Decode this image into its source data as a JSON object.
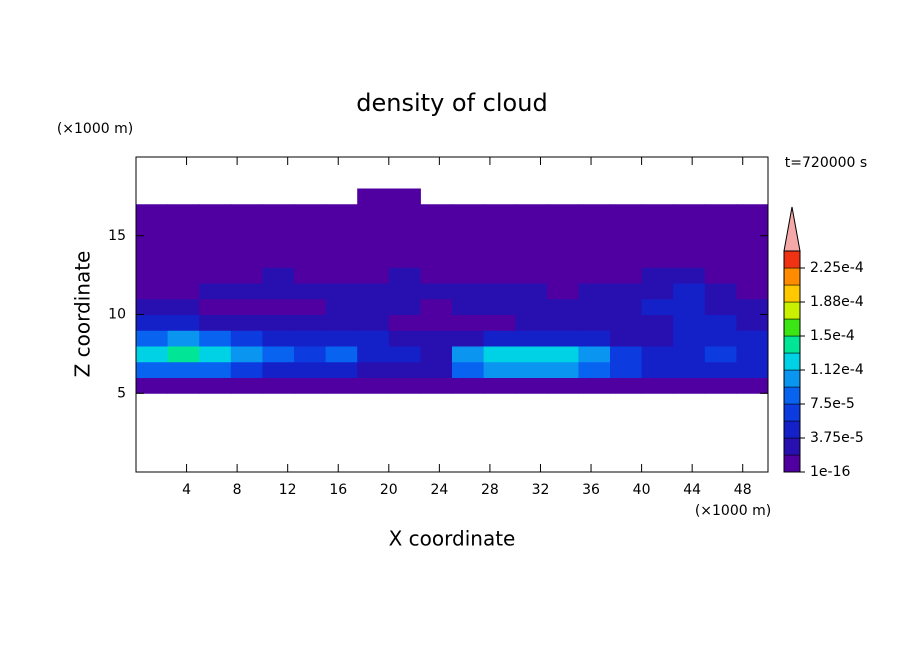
{
  "chart_data": {
    "type": "contour",
    "title": "density of cloud",
    "x_label": "X coordinate",
    "y_label": "Z coordinate",
    "x_unit": "(×1000 m)",
    "y_unit": "(×1000 m)",
    "annotation": "t=720000 s",
    "xlim": [
      0,
      50
    ],
    "ylim": [
      0,
      20
    ],
    "xticks": [
      4,
      8,
      12,
      16,
      20,
      24,
      28,
      32,
      36,
      40,
      44,
      48
    ],
    "yticks": [
      5,
      10,
      15
    ],
    "x": [
      1.25,
      3.75,
      6.25,
      8.75,
      11.25,
      13.75,
      16.25,
      18.75,
      21.25,
      23.75,
      26.25,
      28.75,
      31.25,
      33.75,
      36.25,
      38.75,
      41.25,
      43.75,
      46.25,
      48.75
    ],
    "y": [
      4.5,
      5.5,
      6.5,
      7.5,
      8.5,
      9.5,
      10.5,
      11.5,
      12.5,
      13.5,
      14.5,
      15.5,
      16.5,
      17.5
    ],
    "z": [
      [
        null,
        null,
        null,
        null,
        null,
        null,
        null,
        null,
        null,
        null,
        null,
        null,
        null,
        null,
        null,
        null,
        null,
        null,
        null,
        null
      ],
      [
        1e-05,
        1e-05,
        1e-05,
        1e-05,
        1e-05,
        1e-05,
        1e-05,
        1e-05,
        1e-05,
        1e-05,
        1e-05,
        1e-05,
        1e-05,
        1e-05,
        1e-05,
        1e-05,
        1e-05,
        1e-05,
        1e-05,
        1e-05
      ],
      [
        8e-05,
        9e-05,
        9e-05,
        6e-05,
        5e-05,
        4e-05,
        4e-05,
        3e-05,
        3e-05,
        2e-05,
        8e-05,
        0.0001,
        0.0001,
        0.0001,
        9e-05,
        6e-05,
        4e-05,
        5e-05,
        5e-05,
        4e-05
      ],
      [
        0.00012,
        0.00014,
        0.00013,
        0.0001,
        8e-05,
        6e-05,
        8e-05,
        5e-05,
        4e-05,
        2e-05,
        0.0001,
        0.00013,
        0.00012,
        0.00012,
        0.00011,
        6e-05,
        4e-05,
        5e-05,
        6e-05,
        5e-05
      ],
      [
        9e-05,
        0.00011,
        9e-05,
        7e-05,
        5e-05,
        4e-05,
        5e-05,
        4e-05,
        3e-05,
        2e-05,
        3e-05,
        5e-05,
        5e-05,
        5e-05,
        4e-05,
        3e-05,
        3e-05,
        4e-05,
        5e-05,
        4e-05
      ],
      [
        4e-05,
        4e-05,
        3e-05,
        3e-05,
        3e-05,
        2e-05,
        2e-05,
        2e-05,
        1e-05,
        1e-05,
        1e-05,
        1e-05,
        2e-05,
        2e-05,
        2e-05,
        2e-05,
        3e-05,
        4e-05,
        4e-05,
        3e-05
      ],
      [
        2e-05,
        2e-05,
        1e-05,
        1e-05,
        1e-05,
        1e-05,
        2e-05,
        2e-05,
        2e-05,
        1e-05,
        2e-05,
        2e-05,
        2e-05,
        2e-05,
        3e-05,
        3e-05,
        5e-05,
        5e-05,
        3e-05,
        2e-05
      ],
      [
        1e-05,
        1e-05,
        2e-05,
        2e-05,
        2e-05,
        2e-05,
        2e-05,
        2e-05,
        2e-05,
        2e-05,
        2e-05,
        2e-05,
        2e-05,
        1e-05,
        2e-05,
        2e-05,
        3e-05,
        5e-05,
        2e-05,
        1e-05
      ],
      [
        1e-05,
        1e-05,
        1e-05,
        1e-05,
        2e-05,
        1e-05,
        1e-05,
        1e-05,
        2e-05,
        1e-05,
        1e-05,
        1e-05,
        1e-05,
        1e-05,
        1e-05,
        1e-05,
        2e-05,
        2e-05,
        1e-05,
        1e-05
      ],
      [
        5e-06,
        5e-06,
        5e-06,
        5e-06,
        5e-06,
        5e-06,
        5e-06,
        5e-06,
        5e-06,
        5e-06,
        5e-06,
        5e-06,
        5e-06,
        5e-06,
        5e-06,
        5e-06,
        5e-06,
        5e-06,
        5e-06,
        5e-06
      ],
      [
        5e-06,
        5e-06,
        5e-06,
        5e-06,
        5e-06,
        5e-06,
        5e-06,
        5e-06,
        5e-06,
        5e-06,
        5e-06,
        5e-06,
        5e-06,
        5e-06,
        5e-06,
        5e-06,
        5e-06,
        5e-06,
        5e-06,
        5e-06
      ],
      [
        5e-06,
        5e-06,
        5e-06,
        5e-06,
        5e-06,
        5e-06,
        5e-06,
        5e-06,
        5e-06,
        5e-06,
        5e-06,
        5e-06,
        5e-06,
        5e-06,
        5e-06,
        5e-06,
        5e-06,
        5e-06,
        5e-06,
        5e-06
      ],
      [
        5e-06,
        5e-06,
        5e-06,
        5e-06,
        5e-06,
        5e-06,
        5e-06,
        5e-06,
        5e-06,
        5e-06,
        5e-06,
        5e-06,
        5e-06,
        5e-06,
        5e-06,
        5e-06,
        5e-06,
        5e-06,
        5e-06,
        5e-06
      ],
      [
        null,
        null,
        null,
        null,
        null,
        null,
        null,
        5e-06,
        5e-06,
        null,
        null,
        null,
        null,
        null,
        null,
        null,
        null,
        null,
        null,
        null
      ]
    ],
    "levels": [
      1e-16,
      1.875e-05,
      3.75e-05,
      5.625e-05,
      7.5e-05,
      9.375e-05,
      0.0001125,
      0.00013125,
      0.00015,
      0.00016875,
      0.0001875,
      0.00020625,
      0.000225,
      0.00024375
    ],
    "colors": [
      "#5000a0",
      "#2810b0",
      "#1420c8",
      "#0c3ce0",
      "#0864f0",
      "#0a96f0",
      "#00d2e6",
      "#00e696",
      "#3ce614",
      "#c8f000",
      "#ffc800",
      "#ff8c00",
      "#f03214"
    ],
    "over_color": "#f5a8a8",
    "cbar_ticks": [
      1e-16,
      {
        "value": 3.75e-05,
        "label": "3.75e-5"
      },
      {
        "value": 7.5e-05,
        "label": "7.5e-5"
      },
      {
        "value": 0.0001125,
        "label": "1.12e-4"
      },
      {
        "value": 0.00015,
        "label": "1.5e-4"
      },
      {
        "value": 0.0001875,
        "label": "1.88e-4"
      },
      {
        "value": 0.000225,
        "label": "2.25e-4"
      }
    ]
  }
}
